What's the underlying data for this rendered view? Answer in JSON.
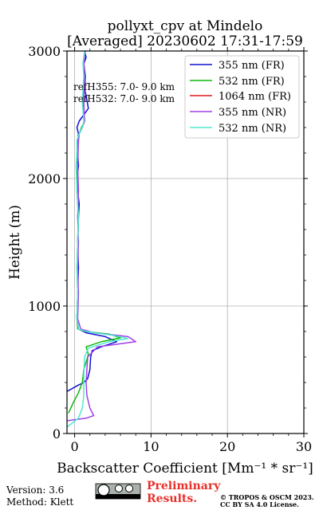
{
  "chart_data": {
    "type": "line",
    "title_line1": "pollyxt_cpv at Mindelo",
    "title_line2": "[Averaged] 20230602 17:31-17:59",
    "xlabel": "Backscatter Coefficient [Mm⁻¹ * sr⁻¹]",
    "ylabel": "Height (m)",
    "xlim": [
      -1,
      30
    ],
    "ylim": [
      0,
      3000
    ],
    "xticks": [
      0,
      10,
      20,
      30
    ],
    "yticks": [
      0,
      1000,
      2000,
      3000
    ],
    "grid": true,
    "legend_position": "top-right",
    "annotations": [
      "refH355:  7.0- 9.0 km",
      "refH532:  7.0- 9.0 km"
    ],
    "series": [
      {
        "name": "355 nm (FR)",
        "color": "#1010d0",
        "x": [
          -1,
          0.5,
          1.2,
          1.7,
          2.0,
          2.1,
          2.3,
          3.5,
          5.5,
          4.0,
          1.5,
          0.5,
          0.3,
          0.4,
          0.5,
          0.4,
          0.5,
          0.6,
          0.4,
          0.3,
          0.5,
          0.4,
          0.4,
          0.5,
          0.3,
          0.6,
          1.2,
          1.8,
          1.5,
          1.3,
          1.4,
          1.2,
          1.5,
          1.3
        ],
        "y": [
          330,
          380,
          400,
          430,
          500,
          600,
          650,
          680,
          720,
          760,
          790,
          820,
          900,
          1100,
          1300,
          1500,
          1700,
          1800,
          1900,
          2000,
          2100,
          2200,
          2300,
          2350,
          2400,
          2450,
          2500,
          2550,
          2650,
          2700,
          2800,
          2900,
          2950,
          3000
        ]
      },
      {
        "name": "532 nm (FR)",
        "color": "#10b810",
        "x": [
          -0.8,
          -0.2,
          0.5,
          1.0,
          1.2,
          1.8,
          1.5,
          3.5,
          6.0,
          4.5,
          1.5,
          0.4,
          0.3,
          0.4,
          0.3,
          0.4,
          0.5,
          0.3,
          0.4,
          0.3,
          0.5,
          0.6,
          0.9,
          1.3,
          1.1,
          1.2,
          1.3,
          1.1,
          1.4
        ],
        "y": [
          160,
          240,
          320,
          400,
          500,
          620,
          680,
          720,
          750,
          780,
          800,
          820,
          900,
          1100,
          1300,
          1500,
          1700,
          1900,
          2100,
          2200,
          2300,
          2350,
          2400,
          2450,
          2600,
          2700,
          2800,
          2900,
          3000
        ]
      },
      {
        "name": "1064 nm (FR)",
        "color": "#e01818",
        "x": [],
        "y": []
      },
      {
        "name": "355 nm (NR)",
        "color": "#a040e8",
        "x": [
          -1,
          1.5,
          2.5,
          2.0,
          1.6,
          1.5,
          1.7,
          3.0,
          8.0,
          7.0,
          2.5,
          0.8,
          0.4,
          0.5,
          0.4,
          0.5,
          0.4,
          0.5,
          0.4,
          0.5,
          0.6,
          1.0,
          1.3,
          1.2,
          1.3,
          1.2,
          1.4
        ],
        "y": [
          100,
          120,
          140,
          200,
          300,
          400,
          600,
          680,
          720,
          760,
          790,
          820,
          900,
          1100,
          1300,
          1500,
          1700,
          1900,
          2100,
          2300,
          2350,
          2400,
          2450,
          2600,
          2800,
          2900,
          3000
        ]
      },
      {
        "name": "532 nm (NR)",
        "color": "#50e8d0",
        "x": [
          -1,
          0.5,
          1.0,
          1.2,
          1.2,
          1.3,
          1.8,
          4.5,
          7.0,
          5.0,
          1.5,
          0.5,
          0.3,
          0.4,
          0.3,
          0.4,
          0.5,
          0.3,
          0.2,
          0.3,
          0.3,
          0.6,
          1.0,
          1.2,
          1.0,
          1.2,
          1.1,
          1.3
        ],
        "y": [
          50,
          120,
          200,
          300,
          450,
          600,
          670,
          720,
          745,
          770,
          800,
          820,
          900,
          1100,
          1300,
          1500,
          1700,
          1900,
          2100,
          2200,
          2300,
          2350,
          2400,
          2450,
          2600,
          2800,
          2900,
          3000
        ]
      }
    ]
  },
  "footer": {
    "version": "Version: 3.6",
    "method": "Method: Klett",
    "preliminary_line1": "Preliminary",
    "preliminary_line2": "Results.",
    "copyright_line1": "© TROPOS & OSCM 2023.",
    "copyright_line2": "CC BY SA 4.0 License.",
    "license_badge": "cc-by-sa"
  }
}
